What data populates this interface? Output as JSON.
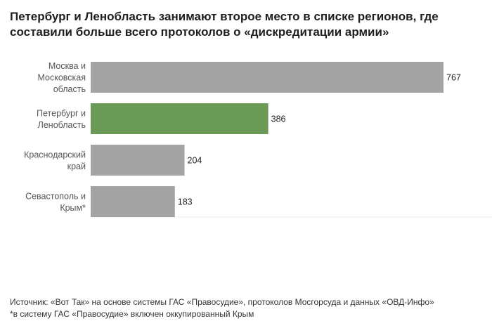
{
  "title": "Петербург и Ленобласть занимают второе место в списке регионов, где составили больше всего протоколов о «дискредитации армии»",
  "chart_data": {
    "type": "bar",
    "orientation": "horizontal",
    "categories": [
      [
        "Москва и",
        "Московская",
        "область"
      ],
      [
        "Петербург и",
        "Ленобласть"
      ],
      [
        "Краснодарский",
        "край"
      ],
      [
        "Севастополь и",
        "Крым*"
      ]
    ],
    "values": [
      767,
      386,
      204,
      183
    ],
    "value_labels": [
      "767",
      "386",
      "204",
      "183"
    ],
    "highlight_index": 1,
    "colors": {
      "default": "#a3a3a3",
      "highlight": "#6a9a55"
    },
    "xlim": [
      0,
      767
    ],
    "grid": false,
    "legend": "none"
  },
  "footer": {
    "source": "Источник: «Вот Так» на основе системы ГАС «Правосудие», протоколов Мосгорсуда и данных «ОВД-Инфо»",
    "note": "*в систему ГАС «Правосудие» включен оккупированный Крым"
  }
}
